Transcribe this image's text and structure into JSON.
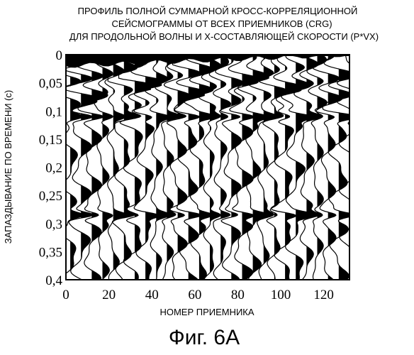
{
  "chart_data": {
    "type": "seismic-wiggle",
    "title_lines": [
      "ПРОФИЛЬ ПОЛНОЙ СУММАРНОЙ КРОСС-КОРРЕЛЯЦИОННОЙ",
      "СЕЙСМОГРАММЫ ОТ ВСЕХ ПРИЕМНИКОВ (CRG)",
      "ДЛЯ ПРОДОЛЬНОЙ ВОЛНЫ И Х-СОСТАВЛЯЮЩЕЙ СКОРОСТИ (P*VX)"
    ],
    "xlabel": "НОМЕР ПРИЕМНИКА",
    "ylabel": "ЗАПАЗДЫВАНИЕ ПО ВРЕМЕНИ (с)",
    "x_ticks": [
      "0",
      "20",
      "40",
      "60",
      "80",
      "100",
      "120"
    ],
    "y_ticks": [
      "0",
      "0,05",
      "0,1",
      "0,15",
      "0,2",
      "0,25",
      "0,3",
      "0,35",
      "0,4"
    ],
    "xlim": [
      0,
      132
    ],
    "ylim": [
      0,
      0.4
    ],
    "y_inverted": true,
    "grid": false,
    "trace_count": 27,
    "trace_spacing": 5,
    "strong_events_s": [
      0.0,
      0.11,
      0.285
    ],
    "fill_color": "#000000",
    "line_color": "#000000"
  },
  "caption": "Фиг. 6A"
}
